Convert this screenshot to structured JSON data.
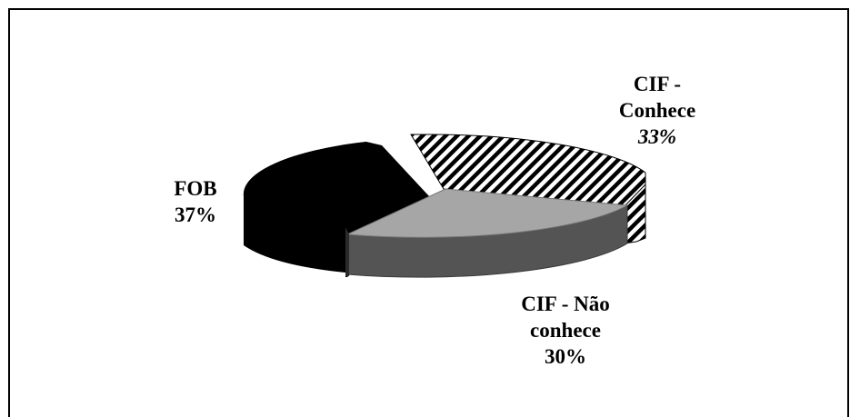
{
  "chart_data": {
    "type": "pie",
    "title": "",
    "three_d": true,
    "series": [
      {
        "name": "CIF - Conhece",
        "label_lines": [
          "CIF -",
          "Conhece",
          "33%"
        ],
        "value": 33,
        "fill": "hatch"
      },
      {
        "name": "CIF - Não conhece",
        "label_lines": [
          "CIF - Não",
          "conhece",
          "30%"
        ],
        "value": 30,
        "fill": "#a6a6a6"
      },
      {
        "name": "FOB",
        "label_lines": [
          "FOB",
          "37%"
        ],
        "value": 37,
        "fill": "#000000"
      }
    ],
    "colors": {
      "hatch_stripe": "#000000",
      "gray_top": "#a6a6a6",
      "gray_side": "#545454",
      "black": "#000000"
    }
  }
}
